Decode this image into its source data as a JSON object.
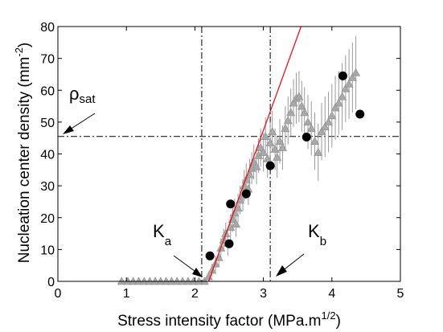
{
  "chart_data": {
    "type": "scatter",
    "xlabel": "Stress intensity factor (MPa.m",
    "xlabel_sup": "1/2",
    "xlabel_end": ")",
    "ylabel": "Nucleation center density (mm",
    "ylabel_sup": "-2",
    "ylabel_end": ")",
    "xlim": [
      0,
      5
    ],
    "ylim": [
      0,
      80
    ],
    "xticks": [
      "0",
      "1",
      "2",
      "3",
      "4",
      "5"
    ],
    "yticks": [
      "0",
      "10",
      "20",
      "30",
      "40",
      "50",
      "60",
      "70",
      "80"
    ],
    "grid": false,
    "annotations": {
      "rho_sat": {
        "symbol": "ρ",
        "sub": "sat",
        "y": 45.5
      },
      "ka": {
        "symbol": "K",
        "sub": "a",
        "x": 2.1
      },
      "kb": {
        "symbol": "K",
        "sub": "b",
        "x": 3.1
      }
    },
    "reference_lines": {
      "vertical_x": [
        2.1,
        3.1
      ],
      "horizontal_y": [
        45.5
      ]
    },
    "fit_line": {
      "x": [
        2.2,
        3.55
      ],
      "y": [
        0,
        80
      ],
      "color": "#e8141b"
    },
    "series": [
      {
        "marker": "circle",
        "color": "#000000",
        "points": [
          [
            2.22,
            8
          ],
          [
            2.5,
            11.8
          ],
          [
            2.52,
            24.3
          ],
          [
            2.75,
            27.5
          ],
          [
            3.1,
            36.3
          ],
          [
            3.63,
            45.3
          ],
          [
            4.16,
            64.5
          ],
          [
            4.41,
            52.5
          ]
        ]
      },
      {
        "marker": "triangle",
        "color": "#a9a9a9",
        "points": [
          [
            0.93,
            0,
            0
          ],
          [
            1.02,
            0,
            0
          ],
          [
            1.1,
            0,
            0
          ],
          [
            1.18,
            0,
            0
          ],
          [
            1.26,
            0,
            0
          ],
          [
            1.34,
            0,
            0
          ],
          [
            1.42,
            0,
            0
          ],
          [
            1.5,
            0,
            0
          ],
          [
            1.58,
            0,
            0
          ],
          [
            1.66,
            0,
            0
          ],
          [
            1.74,
            0,
            0
          ],
          [
            1.82,
            0,
            0
          ],
          [
            1.9,
            0,
            0
          ],
          [
            1.98,
            0,
            0
          ],
          [
            2.06,
            0,
            0
          ],
          [
            2.14,
            0,
            0
          ],
          [
            2.2,
            1.5,
            1.5
          ],
          [
            2.25,
            3.5,
            2
          ],
          [
            2.3,
            5.5,
            2.5
          ],
          [
            2.35,
            7.5,
            3
          ],
          [
            2.38,
            10.5,
            3
          ],
          [
            2.42,
            13,
            3.5
          ],
          [
            2.45,
            15,
            3.5
          ],
          [
            2.48,
            12,
            4
          ],
          [
            2.52,
            17,
            4
          ],
          [
            2.55,
            19.5,
            4
          ],
          [
            2.58,
            21.5,
            4.5
          ],
          [
            2.6,
            18,
            4
          ],
          [
            2.63,
            23,
            4.5
          ],
          [
            2.66,
            25.5,
            4.5
          ],
          [
            2.7,
            27,
            5
          ],
          [
            2.72,
            30,
            5
          ],
          [
            2.75,
            32,
            5
          ],
          [
            2.78,
            29,
            5
          ],
          [
            2.8,
            33.5,
            5
          ],
          [
            2.83,
            35.5,
            5
          ],
          [
            2.86,
            37.5,
            5.5
          ],
          [
            2.9,
            36,
            5.5
          ],
          [
            2.93,
            39.5,
            5.5
          ],
          [
            2.96,
            42,
            6
          ],
          [
            3.0,
            40.5,
            6
          ],
          [
            3.03,
            45.5,
            6
          ],
          [
            3.06,
            38.5,
            6
          ],
          [
            3.1,
            43.5,
            6.5
          ],
          [
            3.13,
            47,
            6.5
          ],
          [
            3.17,
            41.5,
            6.5
          ],
          [
            3.2,
            39,
            6.5
          ],
          [
            3.24,
            44,
            7
          ],
          [
            3.28,
            42,
            7
          ],
          [
            3.32,
            48,
            7
          ],
          [
            3.36,
            50.5,
            7.5
          ],
          [
            3.4,
            53,
            7.5
          ],
          [
            3.44,
            56,
            7.5
          ],
          [
            3.48,
            57.5,
            8
          ],
          [
            3.52,
            58,
            8
          ],
          [
            3.56,
            55,
            8
          ],
          [
            3.6,
            53,
            8
          ],
          [
            3.65,
            50,
            8.5
          ],
          [
            3.7,
            48,
            8.5
          ],
          [
            3.75,
            44,
            9
          ],
          [
            3.8,
            40.5,
            9
          ],
          [
            3.85,
            47,
            9
          ],
          [
            3.9,
            48.5,
            9.5
          ],
          [
            3.95,
            50,
            9.5
          ],
          [
            4.0,
            52,
            10
          ],
          [
            4.05,
            54.5,
            10
          ],
          [
            4.1,
            56,
            10
          ],
          [
            4.15,
            58,
            10.5
          ],
          [
            4.2,
            60.5,
            10.5
          ],
          [
            4.25,
            62,
            11
          ],
          [
            4.3,
            64,
            11
          ],
          [
            4.35,
            65.5,
            11.5
          ]
        ]
      }
    ]
  }
}
